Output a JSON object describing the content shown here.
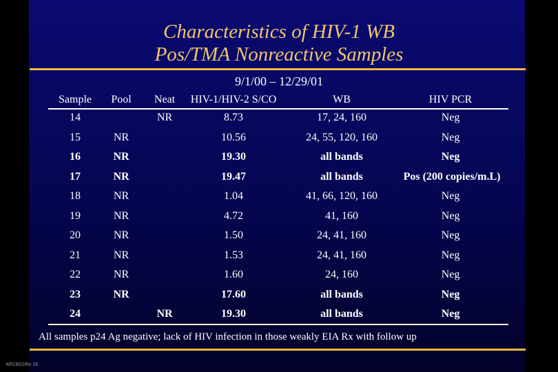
{
  "title_line1": "Characteristics of HIV-1 WB",
  "title_line2": "Pos/TMA Nonreactive Samples",
  "date_range": "9/1/00 – 12/29/01",
  "headers": {
    "sample": "Sample",
    "pool": "Pool",
    "neat": "Neat",
    "sco": "HIV-1/HIV-2 S/CO",
    "wb": "WB",
    "pcr": "HIV PCR"
  },
  "rows": [
    {
      "sample": "14",
      "pool": "",
      "neat": "NR",
      "sco": "8.73",
      "wb": "17, 24, 160",
      "pcr": "Neg",
      "bold": false
    },
    {
      "sample": "15",
      "pool": "NR",
      "neat": "",
      "sco": "10.56",
      "wb": "24, 55, 120, 160",
      "pcr": "Neg",
      "bold": false
    },
    {
      "sample": "16",
      "pool": "NR",
      "neat": "",
      "sco": "19.30",
      "wb": "all bands",
      "pcr": "Neg",
      "bold": true
    },
    {
      "sample": "17",
      "pool": "NR",
      "neat": "",
      "sco": "19.47",
      "wb": "all bands",
      "pcr": "Pos (200 copies/m.L)",
      "bold": true
    },
    {
      "sample": "18",
      "pool": "NR",
      "neat": "",
      "sco": "1.04",
      "wb": "41, 66, 120, 160",
      "pcr": "Neg",
      "bold": false
    },
    {
      "sample": "19",
      "pool": "NR",
      "neat": "",
      "sco": "4.72",
      "wb": "41, 160",
      "pcr": "Neg",
      "bold": false
    },
    {
      "sample": "20",
      "pool": "NR",
      "neat": "",
      "sco": "1.50",
      "wb": "24, 41, 160",
      "pcr": "Neg",
      "bold": false
    },
    {
      "sample": "21",
      "pool": "NR",
      "neat": "",
      "sco": "1.53",
      "wb": "24, 41, 160",
      "pcr": "Neg",
      "bold": false
    },
    {
      "sample": "22",
      "pool": "NR",
      "neat": "",
      "sco": "1.60",
      "wb": "24, 160",
      "pcr": "Neg",
      "bold": false
    },
    {
      "sample": "23",
      "pool": "NR",
      "neat": "",
      "sco": "17.60",
      "wb": "all bands",
      "pcr": "Neg",
      "bold": true
    },
    {
      "sample": "24",
      "pool": "",
      "neat": "NR",
      "sco": "19.30",
      "wb": "all bands",
      "pcr": "Neg",
      "bold": true
    }
  ],
  "footnote": "All samples p24 Ag negative; lack of HIV infection in those weakly EIA Rx with follow up",
  "slide_code": "ARCB01Riv 18",
  "colors": {
    "background": "#000000",
    "slide_top": "#0a0a72",
    "title": "#f2c46e",
    "accent_rule": "#f2b93a",
    "text": "#ffffff"
  }
}
